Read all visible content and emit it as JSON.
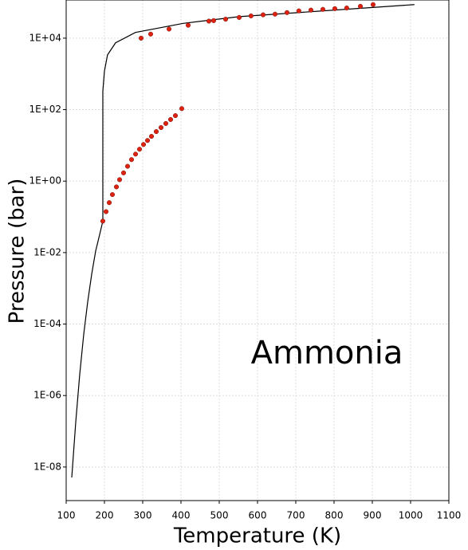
{
  "chart_data": {
    "type": "scatter",
    "xlabel": "Temperature (K)",
    "ylabel": "Pressure (bar)",
    "annotation": "Ammonia",
    "log_y": true,
    "grid": true,
    "xlim": [
      100,
      1100
    ],
    "xticks": [
      100,
      200,
      300,
      400,
      500,
      600,
      700,
      800,
      900,
      1000,
      1100
    ],
    "ylim": [
      1.15e-09,
      117000
    ],
    "yticks": [
      {
        "value": 1e-08,
        "label": "1E-08"
      },
      {
        "value": 1e-06,
        "label": "1E-06"
      },
      {
        "value": 0.0001,
        "label": "1E-04"
      },
      {
        "value": 0.01,
        "label": "1E-02"
      },
      {
        "value": 1,
        "label": "1E+00"
      },
      {
        "value": 100,
        "label": "1E+02"
      },
      {
        "value": 10000,
        "label": "1E+04"
      }
    ],
    "series": [
      {
        "mode": "line",
        "color": "#000000",
        "x": [
          114.6,
          125,
          135.4,
          145.8,
          156,
          166.7,
          177,
          187.5,
          195.8,
          195.8,
          200,
          208,
          229,
          281,
          406,
          552,
          760,
          1010
        ],
        "values": [
          5.1e-09,
          1.8e-07,
          3.9e-06,
          5.1e-05,
          0.0004,
          0.0025,
          0.011,
          0.032,
          0.076,
          330,
          1200,
          3400,
          7400,
          14500,
          26000,
          40000,
          57000,
          87000
        ]
      },
      {
        "mode": "markers",
        "color": "#dd2211",
        "x": [
          195.8,
          204.2,
          212.5,
          220.8,
          231.3,
          239.6,
          250,
          260.4,
          270.8,
          281.3,
          291.7,
          302.1,
          312.5,
          322.9,
          335.4,
          347.9,
          360.4,
          372.9,
          385.4,
          402
        ],
        "values": [
          0.076,
          0.14,
          0.25,
          0.42,
          0.69,
          1.1,
          1.7,
          2.6,
          4.0,
          5.7,
          7.8,
          10.6,
          13.7,
          17.9,
          24.3,
          31.5,
          41,
          53,
          68,
          107
        ]
      },
      {
        "mode": "markers",
        "color": "#dd2211",
        "x": [
          295.8,
          320.8,
          368.8,
          418.8,
          472.9,
          485.4,
          516.7,
          552,
          583,
          614.6,
          645.8,
          677,
          708,
          739.6,
          770.8,
          802,
          833,
          868.8,
          902
        ],
        "values": [
          10000,
          13000,
          18000,
          23000,
          30000,
          31000,
          34000,
          38000,
          42000,
          45000,
          47000,
          52000,
          58000,
          61000,
          64000,
          67000,
          70000,
          78000,
          87000
        ]
      }
    ]
  }
}
